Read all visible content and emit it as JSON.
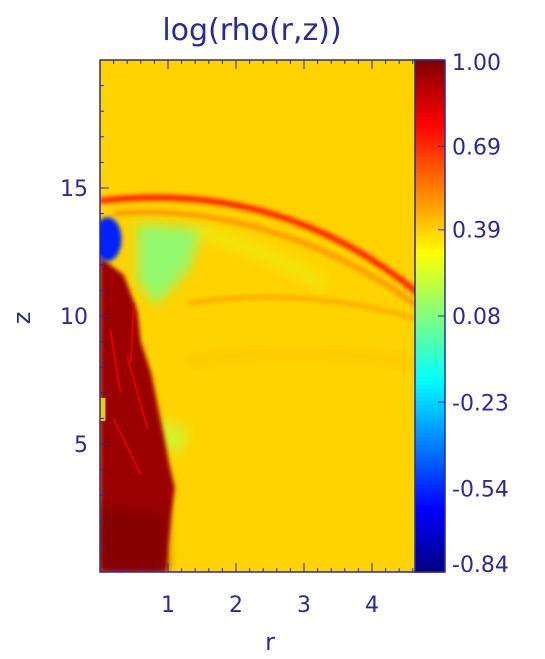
{
  "chart_data": {
    "type": "heatmap",
    "title": "log(rho(r,z))",
    "xlabel": "r",
    "ylabel": "z",
    "xlim": [
      0,
      5
    ],
    "ylim": [
      0,
      20
    ],
    "x_ticks": [
      {
        "value": 1,
        "label": "1"
      },
      {
        "value": 2,
        "label": "2"
      },
      {
        "value": 3,
        "label": "3"
      },
      {
        "value": 4,
        "label": "4"
      }
    ],
    "y_ticks": [
      {
        "value": 5,
        "label": "5"
      },
      {
        "value": 10,
        "label": "10"
      },
      {
        "value": 15,
        "label": "15"
      }
    ],
    "colorbar": {
      "min": -0.84,
      "max": 1.0,
      "tick_labels": [
        "1.00",
        "0.69",
        "0.39",
        "0.08",
        "-0.23",
        "-0.54",
        "-0.84"
      ],
      "tick_values": [
        1.0,
        0.69,
        0.39,
        0.08,
        -0.23,
        -0.54,
        -0.84
      ],
      "colormap": "jet"
    },
    "background_value": 0.39,
    "features": [
      {
        "name": "bow-shock",
        "value": 0.72,
        "r_range": [
          0,
          5
        ],
        "z_range": [
          10,
          14.6
        ]
      },
      {
        "name": "jet-beam",
        "value": 0.95,
        "r_range": [
          0,
          1.1
        ],
        "z_range": [
          0,
          12
        ]
      },
      {
        "name": "jet-head-low-density",
        "value": -0.55,
        "r_range": [
          0,
          0.25
        ],
        "z_range": [
          12.4,
          13.6
        ]
      },
      {
        "name": "cocoon-cavity",
        "value": 0.08,
        "r_range": [
          0.6,
          1.5
        ],
        "z_range": [
          11.5,
          13.5
        ]
      }
    ]
  },
  "colors": {
    "axis": "#2a2a9a",
    "background_field": "#f8cc00"
  }
}
